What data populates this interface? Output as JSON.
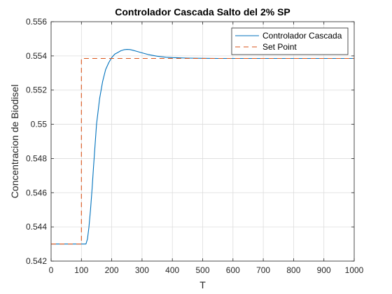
{
  "chart_data": {
    "type": "line",
    "title": "Controlador Cascada Salto del 2% SP",
    "xlabel": "T",
    "ylabel": "Concentracion de Biodisel",
    "xlim": [
      0,
      1000
    ],
    "ylim": [
      0.542,
      0.556
    ],
    "xticks": [
      0,
      100,
      200,
      300,
      400,
      500,
      600,
      700,
      800,
      900,
      1000
    ],
    "yticks": [
      0.542,
      0.544,
      0.546,
      0.548,
      0.55,
      0.552,
      0.554,
      0.556
    ],
    "ytick_labels": [
      "0.542",
      "0.544",
      "0.546",
      "0.548",
      "0.55",
      "0.552",
      "0.554",
      "0.556"
    ],
    "grid": true,
    "legend_position": "top-right",
    "series": [
      {
        "name": "Controlador Cascada",
        "color": "#0072BD",
        "style": "solid",
        "x": [
          0,
          100,
          115,
          120,
          125,
          130,
          135,
          140,
          150,
          160,
          170,
          180,
          190,
          200,
          210,
          220,
          230,
          240,
          250,
          260,
          270,
          280,
          300,
          320,
          350,
          380,
          400,
          450,
          500,
          550,
          600,
          700,
          800,
          900,
          1000
        ],
        "y": [
          0.543,
          0.543,
          0.543,
          0.5433,
          0.544,
          0.545,
          0.5462,
          0.5475,
          0.55,
          0.5515,
          0.5525,
          0.5532,
          0.5536,
          0.5539,
          0.5541,
          0.5542,
          0.5543,
          0.55436,
          0.55438,
          0.55437,
          0.55433,
          0.55428,
          0.55418,
          0.55408,
          0.55398,
          0.55392,
          0.5539,
          0.55387,
          0.55386,
          0.55385,
          0.55385,
          0.55385,
          0.55385,
          0.55385,
          0.55385
        ]
      },
      {
        "name": "Set Point",
        "color": "#D95319",
        "style": "dashed",
        "x": [
          0,
          100,
          100,
          1000
        ],
        "y": [
          0.543,
          0.543,
          0.55385,
          0.55385
        ]
      }
    ]
  }
}
